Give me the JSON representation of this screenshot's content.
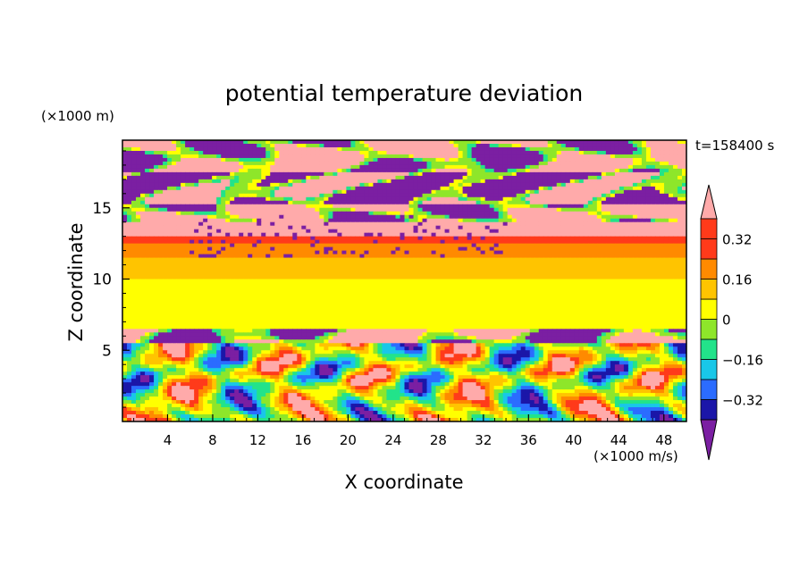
{
  "chart_data": {
    "type": "heatmap",
    "title": "potential temperature deviation",
    "xlabel": "X coordinate",
    "ylabel": "Z coordinate",
    "x_unit": "(×1000 m/s)",
    "y_unit": "(×1000 m)",
    "time_label": "t=158400 s",
    "xlim": [
      0,
      50
    ],
    "ylim": [
      0,
      19.75
    ],
    "x_ticks": [
      4,
      8,
      12,
      16,
      20,
      24,
      28,
      32,
      36,
      40,
      44,
      48
    ],
    "y_ticks": [
      5,
      10,
      15
    ],
    "colorbar": {
      "levels": [
        -0.4,
        -0.32,
        -0.24,
        -0.16,
        -0.08,
        0,
        0.08,
        0.16,
        0.24,
        0.32,
        0.4
      ],
      "tick_labels": [
        "0.32",
        "0.16",
        "0",
        "−0.16",
        "−0.32"
      ],
      "tick_values": [
        0.32,
        0.16,
        0,
        -0.16,
        -0.32
      ],
      "colors": [
        "#7b1fa2",
        "#1b16a8",
        "#2b6cff",
        "#19c7e8",
        "#22e38a",
        "#8ee62a",
        "#ffff00",
        "#ffc400",
        "#ff8a00",
        "#ff3a1a",
        "#ffaaaa"
      ],
      "extend": "both"
    },
    "bands": [
      {
        "z": [
          19.75,
          17.5
        ],
        "dominant": 0.45,
        "secondary": -0.45,
        "note": "pink / purple"
      },
      {
        "z": [
          17.5,
          15.2
        ],
        "dominant": -0.45,
        "secondary": 0.45
      },
      {
        "z": [
          15.2,
          14.0
        ],
        "dominant": 0.45,
        "secondary": -0.45
      },
      {
        "z": [
          14.0,
          13.0
        ],
        "dominant": 0.36
      },
      {
        "z": [
          13.0,
          12.5
        ],
        "dominant": 0.28
      },
      {
        "z": [
          12.5,
          11.5
        ],
        "dominant": 0.2
      },
      {
        "z": [
          11.5,
          10.0
        ],
        "dominant": 0.12
      },
      {
        "z": [
          10.0,
          6.5
        ],
        "dominant": 0.04
      },
      {
        "z": [
          6.5,
          5.5
        ],
        "dominant": 0.45,
        "secondary": -0.45
      },
      {
        "z": [
          5.5,
          0
        ],
        "dominant": -0.12,
        "secondary": 0.3
      }
    ]
  }
}
